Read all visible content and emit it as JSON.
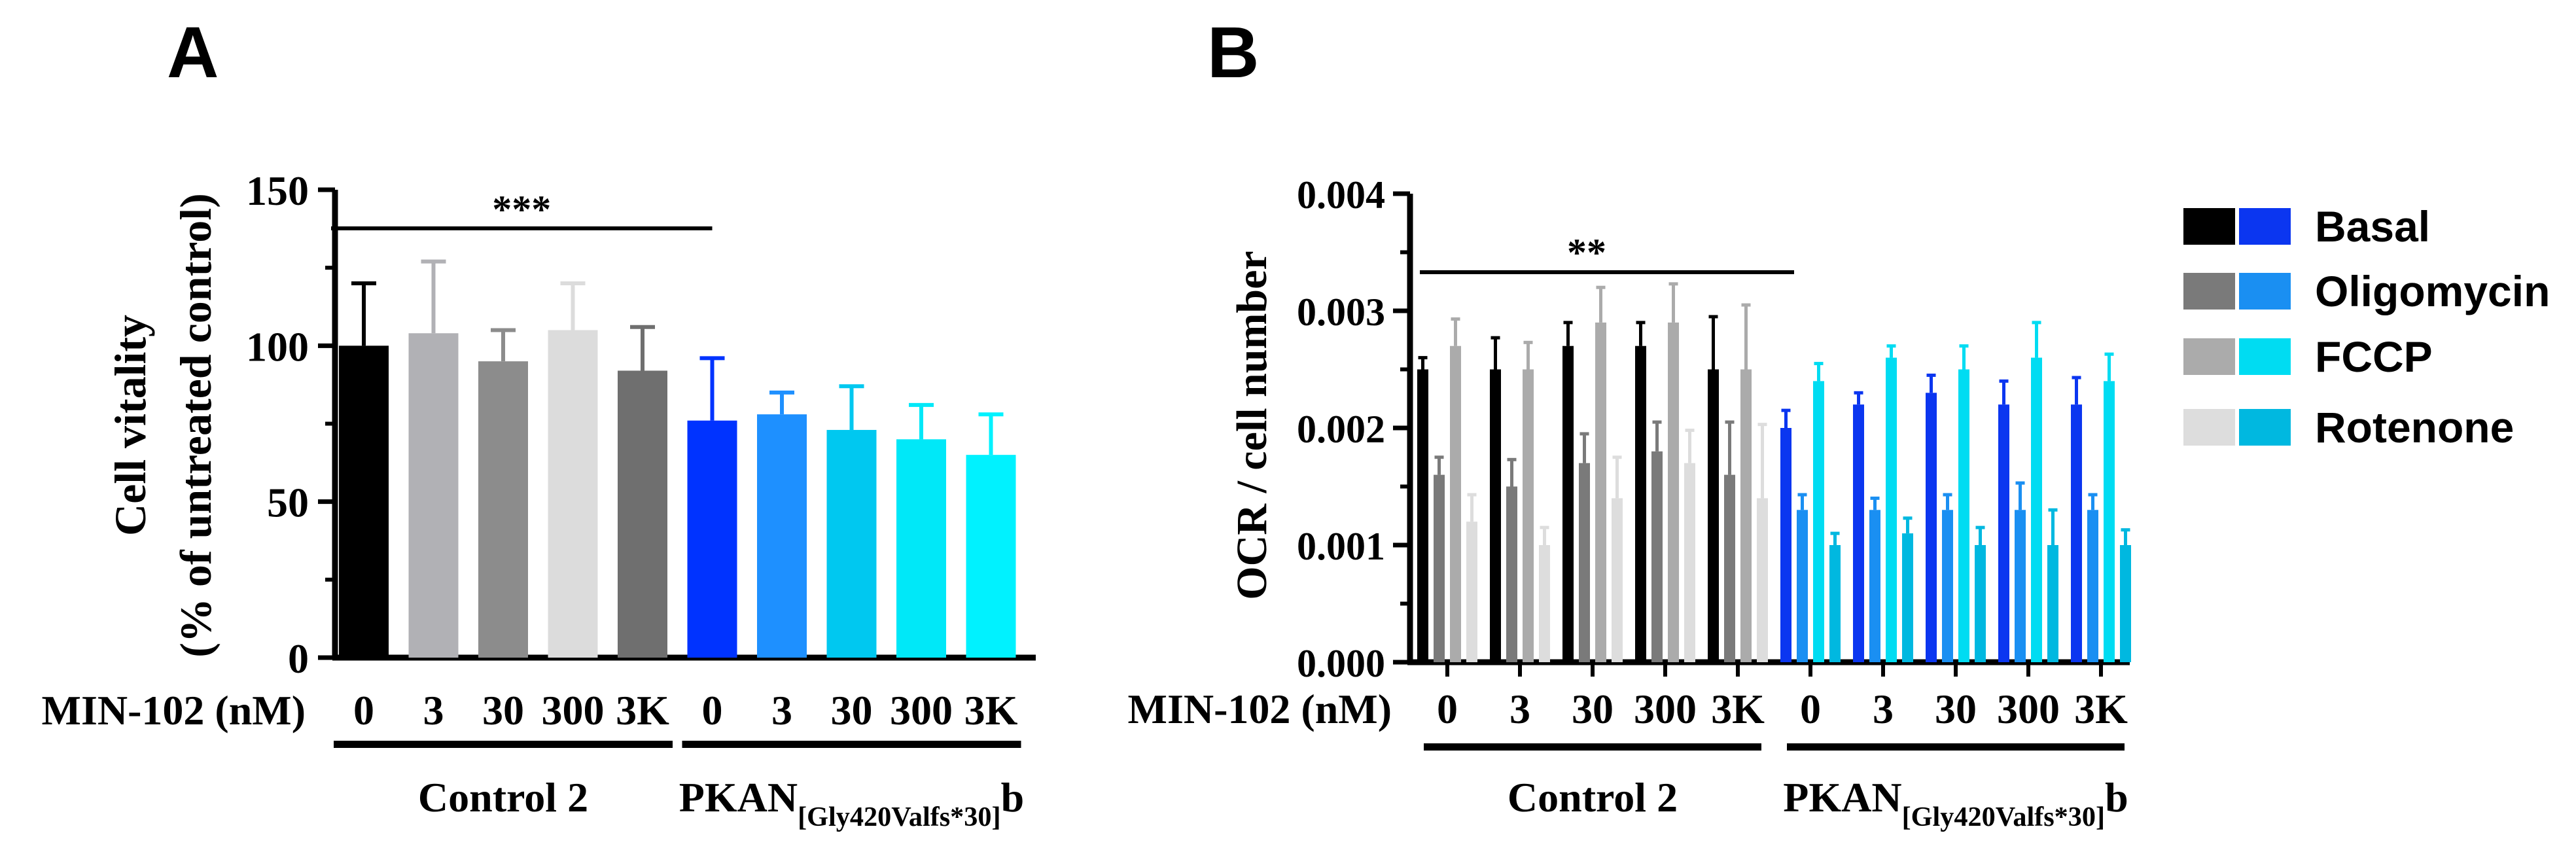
{
  "chart_data": [
    {
      "type": "bar",
      "panel": "A",
      "ylabel": "Cell vitality",
      "ylabel2": "(% of untreated control)",
      "ylim": [
        0,
        150
      ],
      "yticks": [
        "0",
        "50",
        "100",
        "150"
      ],
      "ytick_values": [
        0,
        50,
        100,
        150
      ],
      "xlabel_prefix": "MIN-102 (nM)",
      "categories": [
        "0",
        "3",
        "30",
        "300",
        "3K",
        "0",
        "3",
        "30",
        "300",
        "3K"
      ],
      "values": [
        100,
        104,
        95,
        105,
        92,
        76,
        78,
        73,
        70,
        65
      ],
      "errors": [
        20,
        23,
        10,
        15,
        14,
        20,
        7,
        14,
        11,
        13
      ],
      "colors": [
        "#000000",
        "#b1b1b5",
        "#8c8c8c",
        "#dcdcdc",
        "#6f6f6f",
        "#0033ff",
        "#1e90ff",
        "#00c8f0",
        "#00e8f8",
        "#00f2ff"
      ],
      "groups": [
        {
          "label": "Control 2",
          "start": 0,
          "end": 4
        },
        {
          "label": "PKAN",
          "subscript": "[Gly420Valfs*30]",
          "suffix": "b",
          "start": 5,
          "end": 9
        }
      ],
      "significance": {
        "label": "***",
        "from": 0,
        "to": 5
      }
    },
    {
      "type": "bar",
      "panel": "B",
      "ylabel": "OCR / cell number",
      "ylim": [
        0,
        0.004
      ],
      "yticks": [
        "0.000",
        "0.001",
        "0.002",
        "0.003",
        "0.004"
      ],
      "ytick_values": [
        0,
        0.001,
        0.002,
        0.003,
        0.004
      ],
      "xlabel_prefix": "MIN-102 (nM)",
      "categories": [
        "0",
        "3",
        "30",
        "300",
        "3K",
        "0",
        "3",
        "30",
        "300",
        "3K"
      ],
      "series": [
        {
          "name": "Basal",
          "values": [
            0.0025,
            0.0025,
            0.0027,
            0.0027,
            0.0025,
            0.002,
            0.0022,
            0.0023,
            0.0022,
            0.0022
          ],
          "errors": [
            0.0001,
            0.00027,
            0.0002,
            0.0002,
            0.00045,
            0.00015,
            0.0001,
            0.00015,
            0.0002,
            0.00023
          ]
        },
        {
          "name": "Oligomycin",
          "values": [
            0.0016,
            0.0015,
            0.0017,
            0.0018,
            0.0016,
            0.0013,
            0.0013,
            0.0013,
            0.0013,
            0.0013
          ],
          "errors": [
            0.00015,
            0.00023,
            0.00025,
            0.00025,
            0.00045,
            0.00013,
            0.0001,
            0.00013,
            0.00023,
            0.00013
          ]
        },
        {
          "name": "FCCP",
          "values": [
            0.0027,
            0.0025,
            0.0029,
            0.0029,
            0.0025,
            0.0024,
            0.0026,
            0.0025,
            0.0026,
            0.0024
          ],
          "errors": [
            0.00023,
            0.00023,
            0.0003,
            0.00033,
            0.00055,
            0.00015,
            0.0001,
            0.0002,
            0.0003,
            0.00023
          ]
        },
        {
          "name": "Rotenone",
          "values": [
            0.0012,
            0.001,
            0.0014,
            0.0017,
            0.0014,
            0.001,
            0.0011,
            0.001,
            0.001,
            0.001
          ],
          "errors": [
            0.00023,
            0.00015,
            0.00035,
            0.00028,
            0.00063,
            0.0001,
            0.00013,
            0.00015,
            0.0003,
            0.00013
          ]
        }
      ],
      "series_colors": {
        "control": [
          "#000000",
          "#7a7a7a",
          "#ababab",
          "#dddddd"
        ],
        "pkan": [
          "#0b36f0",
          "#1a8ff2",
          "#00dcf2",
          "#00b8e0"
        ]
      },
      "legend": {
        "placement": "right",
        "entries": [
          "Basal",
          "Oligomycin",
          "FCCP",
          "Rotenone"
        ]
      },
      "groups": [
        {
          "label": "Control 2",
          "start": 0,
          "end": 4
        },
        {
          "label": "PKAN",
          "subscript": "[Gly420Valfs*30]",
          "suffix": "b",
          "start": 5,
          "end": 9
        }
      ],
      "significance": {
        "label": "**",
        "from": 0,
        "to": 5
      }
    }
  ]
}
